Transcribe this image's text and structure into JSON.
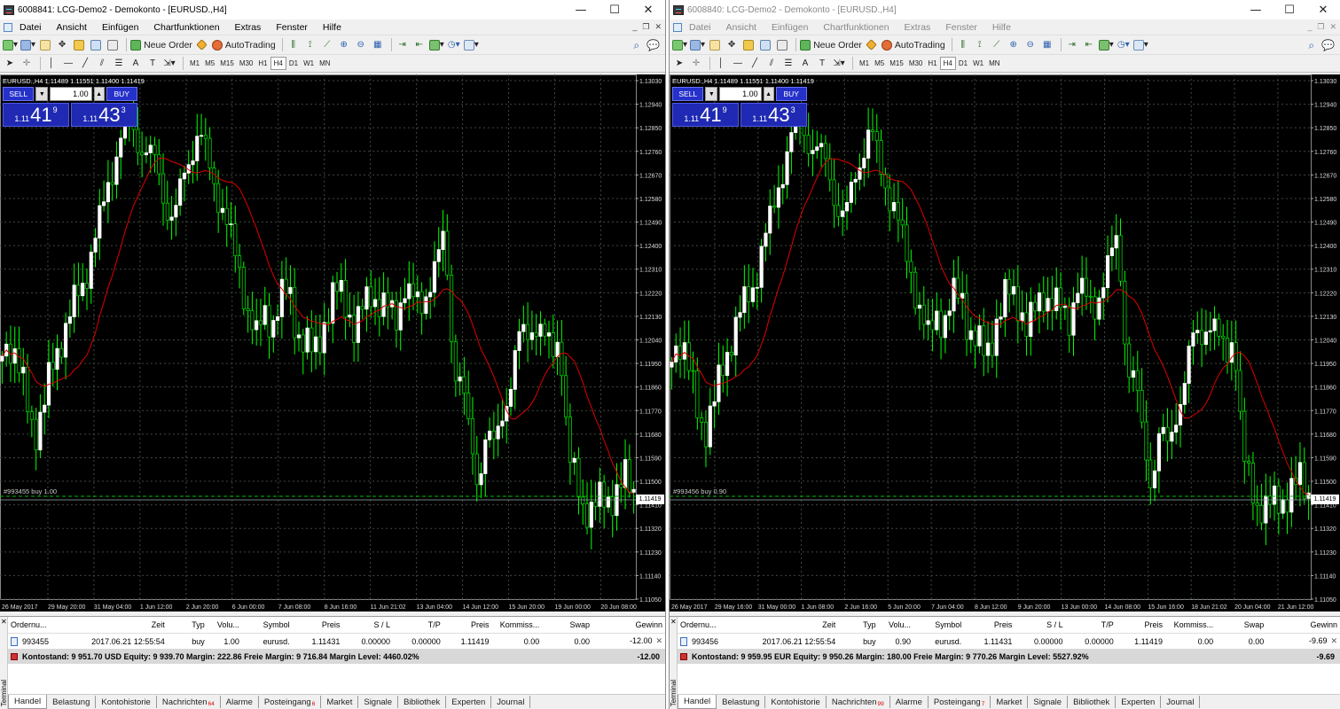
{
  "windows": [
    {
      "title": "6008841: LCG-Demo2 - Demokonto - [EURUSD.,H4]",
      "menu": [
        "Datei",
        "Ansicht",
        "Einfügen",
        "Chartfunktionen",
        "Extras",
        "Fenster",
        "Hilfe"
      ],
      "toolbar": {
        "new_order": "Neue Order",
        "autotrading": "AutoTrading"
      },
      "timeframes": [
        "M1",
        "M5",
        "M15",
        "M30",
        "H1",
        "H4",
        "D1",
        "W1",
        "MN"
      ],
      "active_timeframe": "H4",
      "chart": {
        "header": "EURUSD.,H4 1.11489 1.11551 1.11400 1.11419",
        "sell_label": "SELL",
        "buy_label": "BUY",
        "volume": "1.00",
        "sell_price_small": "1.11",
        "sell_price_big": "41",
        "sell_price_sup": "9",
        "buy_price_small": "1.11",
        "buy_price_big": "43",
        "buy_price_sup": "3",
        "order_label": "#993455 buy 1.00",
        "price_tag": "1.11419",
        "y_axis": [
          "1.13030",
          "1.12940",
          "1.12850",
          "1.12760",
          "1.12670",
          "1.12580",
          "1.12490",
          "1.12400",
          "1.12310",
          "1.12220",
          "1.12130",
          "1.12040",
          "1.11950",
          "1.11860",
          "1.11770",
          "1.11680",
          "1.11590",
          "1.11500",
          "1.11410",
          "1.11320",
          "1.11230",
          "1.11140",
          "1.11050"
        ],
        "x_axis": [
          "26 May 2017",
          "29 May 20:00",
          "31 May 04:00",
          "1 Jun 12:00",
          "2 Jun 20:00",
          "6 Jun 00:00",
          "7 Jun 08:00",
          "8 Jun 16:00",
          "11 Jun 21:02",
          "13 Jun 04:00",
          "14 Jun 12:00",
          "15 Jun 20:00",
          "19 Jun 00:00",
          "20 Jun 08:00"
        ]
      },
      "terminal": {
        "headers": [
          "Ordernu...",
          "Zeit",
          "Typ",
          "Volu...",
          "Symbol",
          "Preis",
          "S / L",
          "T/P",
          "Preis",
          "Kommiss...",
          "Swap",
          "Gewinn"
        ],
        "row": [
          "993455",
          "2017.06.21 12:55:54",
          "buy",
          "1.00",
          "eurusd.",
          "1.11431",
          "0.00000",
          "0.00000",
          "1.11419",
          "0.00",
          "0.00",
          "-12.00"
        ],
        "summary": "Kontostand: 9 951.70 USD  Equity: 9 939.70  Margin: 222.86  Freie Margin: 9 716.84  Margin Level: 4460.02%",
        "summary_profit": "-12.00",
        "tabs": [
          {
            "label": "Handel",
            "badge": ""
          },
          {
            "label": "Belastung",
            "badge": ""
          },
          {
            "label": "Kontohistorie",
            "badge": ""
          },
          {
            "label": "Nachrichten",
            "badge": "64"
          },
          {
            "label": "Alarme",
            "badge": ""
          },
          {
            "label": "Posteingang",
            "badge": "6"
          },
          {
            "label": "Market",
            "badge": ""
          },
          {
            "label": "Signale",
            "badge": ""
          },
          {
            "label": "Bibliothek",
            "badge": ""
          },
          {
            "label": "Experten",
            "badge": ""
          },
          {
            "label": "Journal",
            "badge": ""
          }
        ],
        "side_label": "Terminal"
      }
    },
    {
      "title": "6008840: LCG-Demo2 - Demokonto - [EURUSD.,H4]",
      "menu": [
        "Datei",
        "Ansicht",
        "Einfügen",
        "Chartfunktionen",
        "Extras",
        "Fenster",
        "Hilfe"
      ],
      "toolbar": {
        "new_order": "Neue Order",
        "autotrading": "AutoTrading"
      },
      "timeframes": [
        "M1",
        "M5",
        "M15",
        "M30",
        "H1",
        "H4",
        "D1",
        "W1",
        "MN"
      ],
      "active_timeframe": "H4",
      "chart": {
        "header": "EURUSD.,H4 1.11489 1.11551 1.11400 1.11419",
        "sell_label": "SELL",
        "buy_label": "BUY",
        "volume": "1.00",
        "sell_price_small": "1.11",
        "sell_price_big": "41",
        "sell_price_sup": "9",
        "buy_price_small": "1.11",
        "buy_price_big": "43",
        "buy_price_sup": "3",
        "order_label": "#993456 buy 0.90",
        "price_tag": "1.11419",
        "y_axis": [
          "1.13030",
          "1.12940",
          "1.12850",
          "1.12760",
          "1.12670",
          "1.12580",
          "1.12490",
          "1.12400",
          "1.12310",
          "1.12220",
          "1.12130",
          "1.12040",
          "1.11950",
          "1.11860",
          "1.11770",
          "1.11680",
          "1.11590",
          "1.11500",
          "1.11410",
          "1.11320",
          "1.11230",
          "1.11140",
          "1.11050"
        ],
        "x_axis": [
          "26 May 2017",
          "29 May 16:00",
          "31 May 00:00",
          "1 Jun 08:00",
          "2 Jun 16:00",
          "5 Jun 20:00",
          "7 Jun 04:00",
          "8 Jun 12:00",
          "9 Jun 20:00",
          "13 Jun 00:00",
          "14 Jun 08:00",
          "15 Jun 16:00",
          "18 Jun 21:02",
          "20 Jun 04:00",
          "21 Jun 12:00"
        ]
      },
      "terminal": {
        "headers": [
          "Ordernu...",
          "Zeit",
          "Typ",
          "Volu...",
          "Symbol",
          "Preis",
          "S / L",
          "T/P",
          "Preis",
          "Kommiss...",
          "Swap",
          "Gewinn"
        ],
        "row": [
          "993456",
          "2017.06.21 12:55:54",
          "buy",
          "0.90",
          "eurusd.",
          "1.11431",
          "0.00000",
          "0.00000",
          "1.11419",
          "0.00",
          "0.00",
          "-9.69"
        ],
        "summary": "Kontostand: 9 959.95 EUR  Equity: 9 950.26  Margin: 180.00  Freie Margin: 9 770.26  Margin Level: 5527.92%",
        "summary_profit": "-9.69",
        "tabs": [
          {
            "label": "Handel",
            "badge": ""
          },
          {
            "label": "Belastung",
            "badge": ""
          },
          {
            "label": "Kontohistorie",
            "badge": ""
          },
          {
            "label": "Nachrichten",
            "badge": "99"
          },
          {
            "label": "Alarme",
            "badge": ""
          },
          {
            "label": "Posteingang",
            "badge": "7"
          },
          {
            "label": "Market",
            "badge": ""
          },
          {
            "label": "Signale",
            "badge": ""
          },
          {
            "label": "Bibliothek",
            "badge": ""
          },
          {
            "label": "Experten",
            "badge": ""
          },
          {
            "label": "Journal",
            "badge": ""
          }
        ],
        "side_label": "Terminal"
      }
    }
  ],
  "colors": {
    "bull": "#ffffff",
    "bear": "#00d000",
    "wick": "#00ff00",
    "ma": "#e00000",
    "grid": "#3c4a3c",
    "trade_button": "#2531c9"
  },
  "icons": [
    "new-chart-icon",
    "profiles-icon",
    "zoom-in-icon",
    "zoom-out-icon",
    "search-icon",
    "chat-icon"
  ]
}
